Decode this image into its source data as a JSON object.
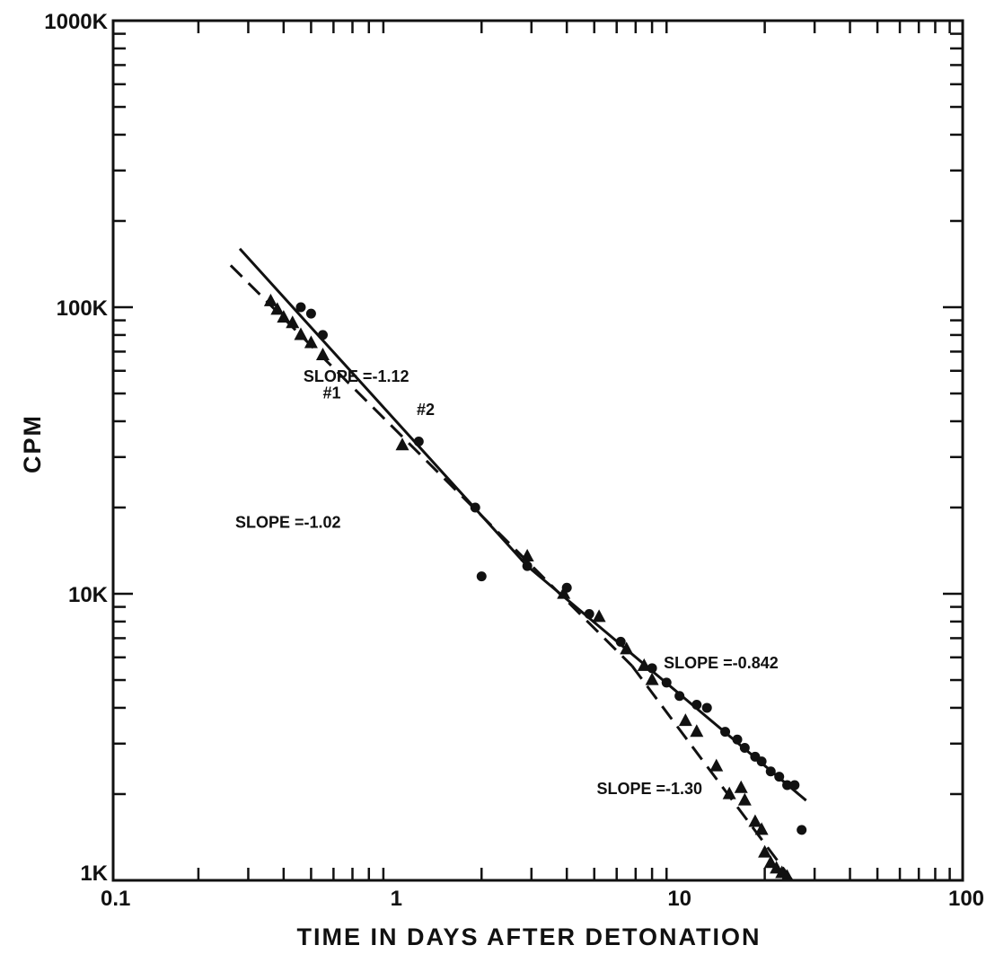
{
  "chart_data": {
    "type": "scatter",
    "xlabel": "TIME IN DAYS AFTER DETONATION",
    "ylabel": "CPM",
    "x_scale": "log",
    "y_scale": "log",
    "xlim": [
      0.1,
      100
    ],
    "ylim": [
      1000,
      1000000
    ],
    "x_ticks": [
      {
        "value": 0.1,
        "label": "0.1"
      },
      {
        "value": 1,
        "label": "1"
      },
      {
        "value": 10,
        "label": "10"
      },
      {
        "value": 100,
        "label": "100"
      }
    ],
    "y_ticks": [
      {
        "value": 1000,
        "label": "1K"
      },
      {
        "value": 10000,
        "label": "10K"
      },
      {
        "value": 100000,
        "label": "100K"
      },
      {
        "value": 1000000,
        "label": "1000K"
      }
    ],
    "grid": false,
    "series": [
      {
        "name": "#2",
        "marker": "circle",
        "points": [
          [
            0.46,
            100000
          ],
          [
            0.5,
            95000
          ],
          [
            0.55,
            80000
          ],
          [
            1.2,
            34000
          ],
          [
            1.9,
            20000
          ],
          [
            2.0,
            11500
          ],
          [
            2.9,
            12500
          ],
          [
            4.0,
            10500
          ],
          [
            4.8,
            8500
          ],
          [
            6.2,
            6800
          ],
          [
            8.0,
            5500
          ],
          [
            9.0,
            4900
          ],
          [
            10.0,
            4400
          ],
          [
            11.5,
            4100
          ],
          [
            12.5,
            4000
          ],
          [
            14.5,
            3300
          ],
          [
            16.0,
            3100
          ],
          [
            17.0,
            2900
          ],
          [
            18.5,
            2700
          ],
          [
            19.5,
            2600
          ],
          [
            21.0,
            2400
          ],
          [
            22.5,
            2300
          ],
          [
            24.0,
            2150
          ],
          [
            25.5,
            2150
          ],
          [
            27.0,
            1500
          ]
        ]
      },
      {
        "name": "#1",
        "marker": "triangle",
        "points": [
          [
            0.36,
            105000
          ],
          [
            0.38,
            98000
          ],
          [
            0.4,
            92000
          ],
          [
            0.43,
            88000
          ],
          [
            0.46,
            80000
          ],
          [
            0.5,
            75000
          ],
          [
            0.55,
            68000
          ],
          [
            1.05,
            33000
          ],
          [
            2.9,
            13500
          ],
          [
            3.9,
            10000
          ],
          [
            5.2,
            8300
          ],
          [
            6.5,
            6400
          ],
          [
            7.5,
            5600
          ],
          [
            8.0,
            5000
          ],
          [
            10.5,
            3600
          ],
          [
            11.5,
            3300
          ],
          [
            13.5,
            2500
          ],
          [
            15.0,
            2000
          ],
          [
            16.5,
            2100
          ],
          [
            17.0,
            1900
          ],
          [
            18.5,
            1600
          ],
          [
            19.5,
            1500
          ],
          [
            20.0,
            1250
          ],
          [
            21.0,
            1150
          ],
          [
            22.0,
            1100
          ],
          [
            23.0,
            1060
          ],
          [
            24.0,
            1030
          ]
        ]
      }
    ],
    "fit_lines": [
      {
        "style": "solid",
        "points": [
          [
            0.28,
            160000
          ],
          [
            2.9,
            12500
          ]
        ]
      },
      {
        "style": "solid",
        "points": [
          [
            2.9,
            12500
          ],
          [
            28,
            1900
          ]
        ]
      },
      {
        "style": "dashed",
        "points": [
          [
            0.26,
            140000
          ],
          [
            6.8,
            5600
          ]
        ]
      },
      {
        "style": "dashed",
        "points": [
          [
            6.8,
            5600
          ],
          [
            25,
            1000
          ]
        ]
      }
    ],
    "annotations": [
      {
        "text": "SLOPE =-1.12",
        "x": 0.47,
        "y": 55000
      },
      {
        "text": "SLOPE =-1.02",
        "x": 0.27,
        "y": 17000
      },
      {
        "text": "SLOPE =-0.842",
        "x": 8.8,
        "y": 5500
      },
      {
        "text": "SLOPE =-1.30",
        "x": 5.1,
        "y": 2000
      },
      {
        "text": "#1",
        "x": 0.55,
        "y": 48000
      },
      {
        "text": "#2",
        "x": 1.18,
        "y": 42000
      }
    ]
  }
}
